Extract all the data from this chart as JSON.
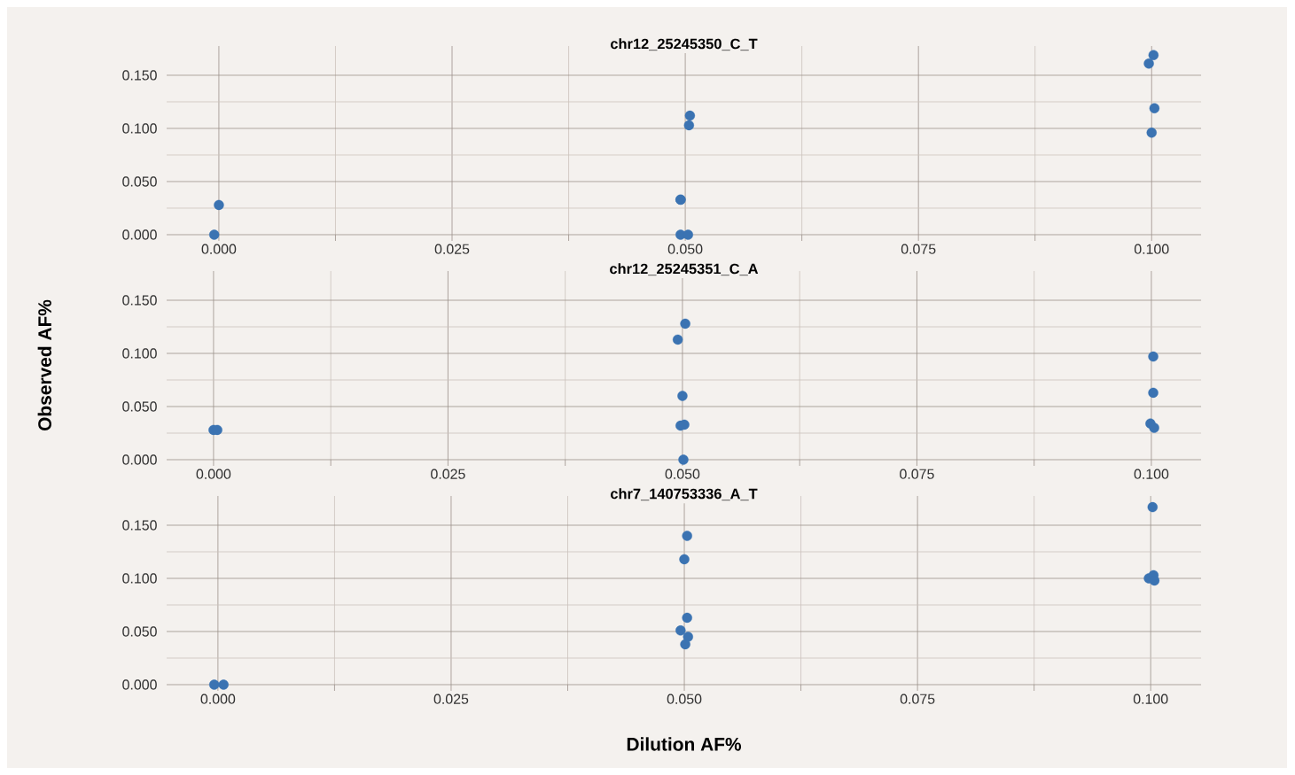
{
  "chart_data": [
    {
      "type": "scatter",
      "title": "chr12_25245350_C_T",
      "color": "#3b73b2",
      "marker": "circle",
      "grid": true,
      "x": [
        0,
        -0.0005,
        0.0495,
        0.0495,
        0.0495,
        0.0503,
        0.0505,
        0.0504,
        0.1002,
        0.0997,
        0.1003,
        0.1
      ],
      "values": [
        0.028,
        0,
        0.033,
        0.033,
        0,
        0,
        0.112,
        0.103,
        0.169,
        0.161,
        0.119,
        0.096
      ],
      "xlim": [
        -0.0056,
        0.1053
      ],
      "ylim": [
        0,
        0.1775
      ],
      "xticks": [
        {
          "value": 0,
          "label": "0.000"
        },
        {
          "value": 0.0125,
          "label": null
        },
        {
          "value": 0.025,
          "label": "0.025"
        },
        {
          "value": 0.0375,
          "label": null
        },
        {
          "value": 0.05,
          "label": "0.050"
        },
        {
          "value": 0.0625,
          "label": null
        },
        {
          "value": 0.075,
          "label": "0.075"
        },
        {
          "value": 0.0875,
          "label": null
        },
        {
          "value": 0.1,
          "label": "0.100"
        }
      ],
      "yticks": [
        {
          "value": 0,
          "label": "0.000"
        },
        {
          "value": 0.025,
          "label": null
        },
        {
          "value": 0.05,
          "label": "0.050"
        },
        {
          "value": 0.075,
          "label": null
        },
        {
          "value": 0.1,
          "label": "0.100"
        },
        {
          "value": 0.125,
          "label": null
        },
        {
          "value": 0.15,
          "label": "0.150"
        }
      ]
    },
    {
      "type": "scatter",
      "title": "chr12_25245351_C_A",
      "ylabel": "Observed AF%",
      "color": "#3b73b2",
      "marker": "circle",
      "grid": true,
      "x": [
        0,
        0.0004,
        0.0503,
        0.0495,
        0.05,
        0.0498,
        0.0502,
        0.0501,
        0.1002,
        0.1002,
        0.0999,
        0.1003
      ],
      "values": [
        0.028,
        0.028,
        0.128,
        0.113,
        0.06,
        0.032,
        0.033,
        0,
        0.097,
        0.063,
        0.034,
        0.03
      ],
      "xlim": [
        -0.005,
        0.1053
      ],
      "ylim": [
        0,
        0.1775
      ],
      "xticks": [
        {
          "value": 0,
          "label": "0.000"
        },
        {
          "value": 0.0125,
          "label": null
        },
        {
          "value": 0.025,
          "label": "0.025"
        },
        {
          "value": 0.0375,
          "label": null
        },
        {
          "value": 0.05,
          "label": "0.050"
        },
        {
          "value": 0.0625,
          "label": null
        },
        {
          "value": 0.075,
          "label": "0.075"
        },
        {
          "value": 0.0875,
          "label": null
        },
        {
          "value": 0.1,
          "label": "0.100"
        }
      ],
      "yticks": [
        {
          "value": 0,
          "label": "0.000"
        },
        {
          "value": 0.025,
          "label": null
        },
        {
          "value": 0.05,
          "label": "0.050"
        },
        {
          "value": 0.075,
          "label": null
        },
        {
          "value": 0.1,
          "label": "0.100"
        },
        {
          "value": 0.125,
          "label": null
        },
        {
          "value": 0.15,
          "label": "0.150"
        }
      ]
    },
    {
      "type": "scatter",
      "title": "chr7_140753336_A_T",
      "xlabel": "Dilution AF%",
      "color": "#3b73b2",
      "marker": "circle",
      "grid": true,
      "x": [
        -0.0004,
        0.0006,
        0.0503,
        0.05,
        0.0503,
        0.0496,
        0.0504,
        0.0501,
        0.1002,
        0.0998,
        0.1003,
        0.1004
      ],
      "values": [
        0,
        0,
        0.14,
        0.118,
        0.063,
        0.051,
        0.045,
        0.038,
        0.167,
        0.1,
        0.103,
        0.098
      ],
      "xlim": [
        -0.0055,
        0.1054
      ],
      "ylim": [
        0,
        0.1775
      ],
      "xticks": [
        {
          "value": 0,
          "label": "0.000"
        },
        {
          "value": 0.0125,
          "label": null
        },
        {
          "value": 0.025,
          "label": "0.025"
        },
        {
          "value": 0.0375,
          "label": null
        },
        {
          "value": 0.05,
          "label": "0.050"
        },
        {
          "value": 0.0625,
          "label": null
        },
        {
          "value": 0.075,
          "label": "0.075"
        },
        {
          "value": 0.0875,
          "label": null
        },
        {
          "value": 0.1,
          "label": "0.100"
        }
      ],
      "yticks": [
        {
          "value": 0,
          "label": "0.000"
        },
        {
          "value": 0.025,
          "label": null
        },
        {
          "value": 0.05,
          "label": "0.050"
        },
        {
          "value": 0.075,
          "label": null
        },
        {
          "value": 0.1,
          "label": "0.100"
        },
        {
          "value": 0.125,
          "label": null
        },
        {
          "value": 0.15,
          "label": "0.150"
        }
      ]
    }
  ]
}
